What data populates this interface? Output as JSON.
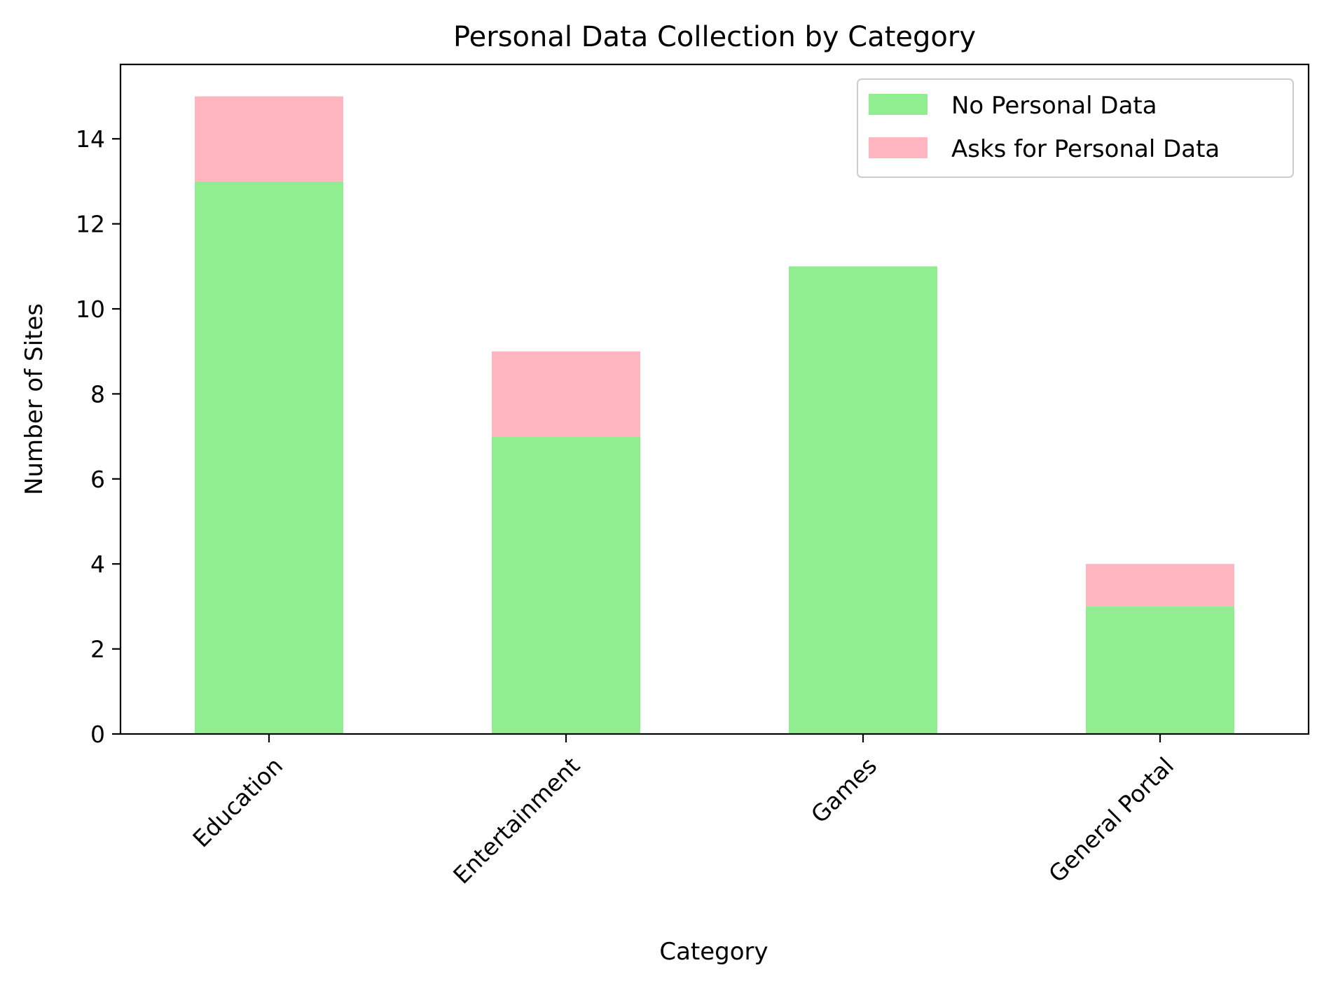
{
  "chart_data": {
    "type": "bar",
    "stacked": true,
    "title": "Personal Data Collection by Category",
    "xlabel": "Category",
    "ylabel": "Number of Sites",
    "categories": [
      "Education",
      "Entertainment",
      "Games",
      "General Portal"
    ],
    "series": [
      {
        "name": "No Personal Data",
        "values": [
          13,
          7,
          11,
          3
        ],
        "color": "#90ee90"
      },
      {
        "name": "Asks for Personal Data",
        "values": [
          2,
          2,
          0,
          1
        ],
        "color": "#ffb6c1"
      }
    ],
    "ylim": [
      0,
      15.75
    ],
    "yticks": [
      0,
      2,
      4,
      6,
      8,
      10,
      12,
      14
    ],
    "grid": false,
    "legend_position": "top-right",
    "tick_label_rotation": 45
  }
}
